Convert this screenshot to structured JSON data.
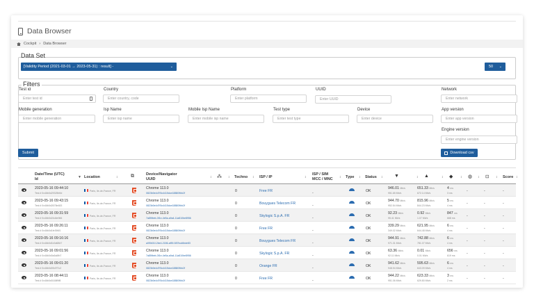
{
  "page": {
    "title": "Data Browser"
  },
  "breadcrumb": {
    "home": "Cockpit",
    "separator": "›",
    "current": "Data Browser"
  },
  "dataset": {
    "title": "Data Set",
    "period_value": "[Validity Period (2021-03-01 → 2023-05-31) : result] -",
    "page_size": "50"
  },
  "filters": {
    "title": "Filters",
    "test_id": {
      "label": "Test id",
      "placeholder": "Enter test id"
    },
    "country": {
      "label": "Country",
      "placeholder": "Enter country, code"
    },
    "platform": {
      "label": "Platform",
      "placeholder": "Enter platform"
    },
    "uuid": {
      "label": "UUID",
      "placeholder": "Enter UUID"
    },
    "network": {
      "label": "Network",
      "placeholder": "Enter network"
    },
    "mobile_generation": {
      "label": "Mobile generation",
      "placeholder": "Enter mobile generation"
    },
    "isp_name": {
      "label": "Isp Name",
      "placeholder": "Enter isp name"
    },
    "mobile_isp_name": {
      "label": "Mobile Isp Name",
      "placeholder": "Enter mobile isp name"
    },
    "test_type": {
      "label": "Test type",
      "placeholder": "Enter test type"
    },
    "device": {
      "label": "Device",
      "placeholder": "Enter device"
    },
    "app_version": {
      "label": "App version",
      "placeholder": "Enter app version"
    },
    "engine_version": {
      "label": "Engine version",
      "placeholder": "Enter engine version"
    },
    "submit_label": "Submit",
    "download_label": "Download csv"
  },
  "table": {
    "headers": {
      "datetime": "Date/Time (UTC)",
      "id": "Id",
      "location": "Location",
      "device": "Device/Navigator",
      "uuid": "UUID",
      "techno": "Techno",
      "isp_ip": "ISP / IP",
      "isp_sim": "ISP / SIM",
      "mcc_mnc": "MCC / MNC",
      "type": "Type",
      "status": "Status",
      "score": "Score"
    },
    "rows": [
      {
        "date": "2023-05-16 09:44:10",
        "test": "Test # 0x46b0d29325b9d",
        "loc": "Paris, Ile-de-France, FR",
        "browser": "Chrome 113.0",
        "uuid": "0823b0e4d7f0c4415dce188809bb2f",
        "techno": "0",
        "isp": "Free FR",
        "isp_sim": "-",
        "status": "OK",
        "dl": "946.01",
        "dl_unit": "Mb/s",
        "dl_sub": "951.65 Mb/s",
        "ul": "651.33",
        "ul_unit": "Mb/s",
        "ul_sub": "672.14 Mb/s",
        "ping": "4",
        "ping_unit": "ms",
        "ping_sub": "3 ms",
        "c1": "-",
        "c2": "-",
        "score": "-"
      },
      {
        "date": "2023-05-16 09:43:15",
        "test": "Test # 0x46b0d2678e483",
        "loc": "Paris, Ile-de-France, FR",
        "browser": "Chrome 113.0",
        "uuid": "0823b0e4d7f0c4415dce188809bb2f",
        "techno": "0",
        "isp": "Bouygues Telecom FR",
        "isp_sim": "-",
        "status": "OK",
        "dl": "944.70",
        "dl_unit": "Mb/s",
        "dl_sub": "952.54 Mb/s",
        "ul": "815.96",
        "ul_unit": "Mb/s",
        "ul_sub": "844.23 Mb/s",
        "ping": "5",
        "ping_unit": "ms",
        "ping_sub": "4 ms",
        "c1": "-",
        "c2": "-",
        "score": "-"
      },
      {
        "date": "2023-05-16 09:31:59",
        "test": "Test # 0x46b0d24d4e966",
        "loc": "Paris, Ile-de-France, FR",
        "browser": "Chrome 113.0",
        "uuid": "7a85fbeb-3f1e-4e5a-a9a4-11a810be8956",
        "techno": "0",
        "isp": "Skylogic S.p.A. FR",
        "isp_sim": "-",
        "status": "OK",
        "dl": "92.23",
        "dl_unit": "Mb/s",
        "dl_sub": "95.41 Mb/s",
        "ul": "0.92",
        "ul_unit": "Mb/s",
        "ul_sub": "1.07 Mb/s",
        "ping": "847",
        "ping_unit": "ms",
        "ping_sub": "668 ms",
        "c1": "-",
        "c2": "-",
        "score": "-"
      },
      {
        "date": "2023-05-16 09:26:11",
        "test": "Test # 0x46b0d1fe396f1",
        "loc": "Paris, Ile-de-France, FR",
        "browser": "Chrome 113.0",
        "uuid": "0823b0e4d7f0c4415dce188809bb2f",
        "techno": "0",
        "isp": "Free FR",
        "isp_sim": "-",
        "status": "OK",
        "dl": "339.29",
        "dl_unit": "Mb/s",
        "dl_sub": "349.02 Mb/s",
        "ul": "621.95",
        "ul_unit": "Mb/s",
        "ul_sub": "644.48 Mb/s",
        "ping": "6",
        "ping_unit": "ms",
        "ping_sub": "4 ms",
        "c1": "-",
        "c2": "-",
        "score": "-"
      },
      {
        "date": "2023-05-16 09:16:16",
        "test": "Test # 0x46b0d1b3d6847",
        "loc": "Paris, Ile-de-France, FR",
        "browser": "Chrome 113.0",
        "uuid": "a0f0b01f-2be4-2186-af59-587bcd6bde83",
        "techno": "0",
        "isp": "Bouygues Telecom FR",
        "isp_sim": "-",
        "status": "OK",
        "dl": "944.91",
        "dl_unit": "Mb/s",
        "dl_sub": "971.31 Mb/s",
        "ul": "742.88",
        "ul_unit": "Mb/s",
        "ul_sub": "781.07 Mb/s",
        "ping": "6",
        "ping_unit": "ms",
        "ping_sub": "4 ms",
        "c1": "-",
        "c2": "-",
        "score": "-"
      },
      {
        "date": "2023-05-16 09:01:56",
        "test": "Test # 0x46b0d0a5a5fb7",
        "loc": "Paris, Ile-de-France, FR",
        "browser": "Chrome 113.0",
        "uuid": "7a85fbeb-3f1e-4e5a-a9a4-11a810be8956",
        "techno": "0",
        "isp": "Skylogic S.p.A. FR",
        "isp_sim": "-",
        "status": "OK",
        "dl": "63.36",
        "dl_unit": "Mb/s",
        "dl_sub": "92.11 Mb/s",
        "ul": "0.01",
        "ul_unit": "Mb/s",
        "ul_sub": "0.01 Mb/s",
        "ping": "656",
        "ping_unit": "ms",
        "ping_sub": "619 ms",
        "c1": "-",
        "c2": "-",
        "score": "-"
      },
      {
        "date": "2023-05-16 09:01:20",
        "test": "Test # 0x46b0d09d7f7c2",
        "loc": "Paris, Ile-de-France, FR",
        "browser": "Chrome 113.0",
        "uuid": "0823b0e4d7f0c4415dce188809bb2f",
        "techno": "0",
        "isp": "Orange FR",
        "isp_sim": "-",
        "status": "OK",
        "dl": "941.62",
        "dl_unit": "Mb/s",
        "dl_sub": "948.94 Mb/s",
        "ul": "595.63",
        "ul_unit": "Mb/s",
        "ul_sub": "643.09 Mb/s",
        "ping": "6",
        "ping_unit": "ms",
        "ping_sub": "4 ms",
        "c1": "-",
        "c2": "-",
        "score": "-"
      },
      {
        "date": "2023-05-16 08:44:11",
        "test": "Test # 0x46b0d0168f9f8",
        "loc": "Paris, Ile-de-France, FR",
        "browser": "Chrome 113.0",
        "uuid": "0823b0e4d7f0c4415dce188809bb2f",
        "techno": "0",
        "isp": "Free FR",
        "isp_sim": "-",
        "status": "OK",
        "dl": "944.22",
        "dl_unit": "Mb/s",
        "dl_sub": "951.06 Mb/s",
        "ul": "623.33",
        "ul_unit": "Mb/s",
        "ul_sub": "629.80 Mb/s",
        "ping": "3",
        "ping_unit": "ms",
        "ping_sub": "2 ms",
        "c1": "-",
        "c2": "-",
        "score": "-"
      }
    ]
  },
  "colors": {
    "accent": "#1f5d9c",
    "link": "#2b6cb0",
    "html5": "#e44d26"
  },
  "icons": [
    "mobile-phone-icon",
    "home-icon",
    "clip-icon",
    "download-icon",
    "eye-icon",
    "flag-fr-icon",
    "html5-icon",
    "network-icon",
    "gauge-icon",
    "download-arrow-icon",
    "upload-arrow-icon",
    "ping-icon",
    "globe-icon",
    "code-icon"
  ]
}
